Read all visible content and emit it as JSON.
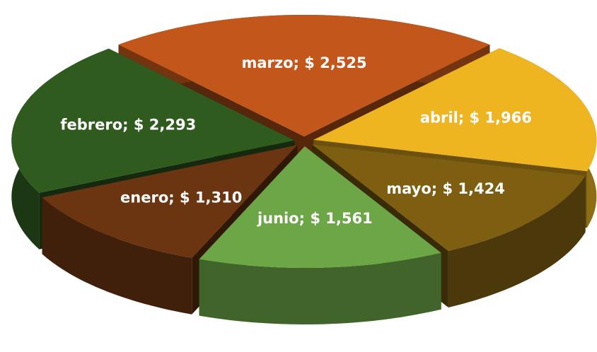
{
  "chart_data": {
    "type": "pie3d",
    "values": [
      1310,
      2293,
      2525,
      1966,
      1424,
      1561
    ],
    "value_labels": [
      "enero; $ 1,310",
      "febrero; $ 2,293",
      "marzo; $ 2,525",
      "abril; $ 1,966",
      "mayo; $ 1,424",
      "junio; $ 1,561"
    ],
    "colors": [
      "#6b3512",
      "#2f5b1f",
      "#c2561b",
      "#efb520",
      "#7e5f12",
      "#6ca646"
    ]
  }
}
